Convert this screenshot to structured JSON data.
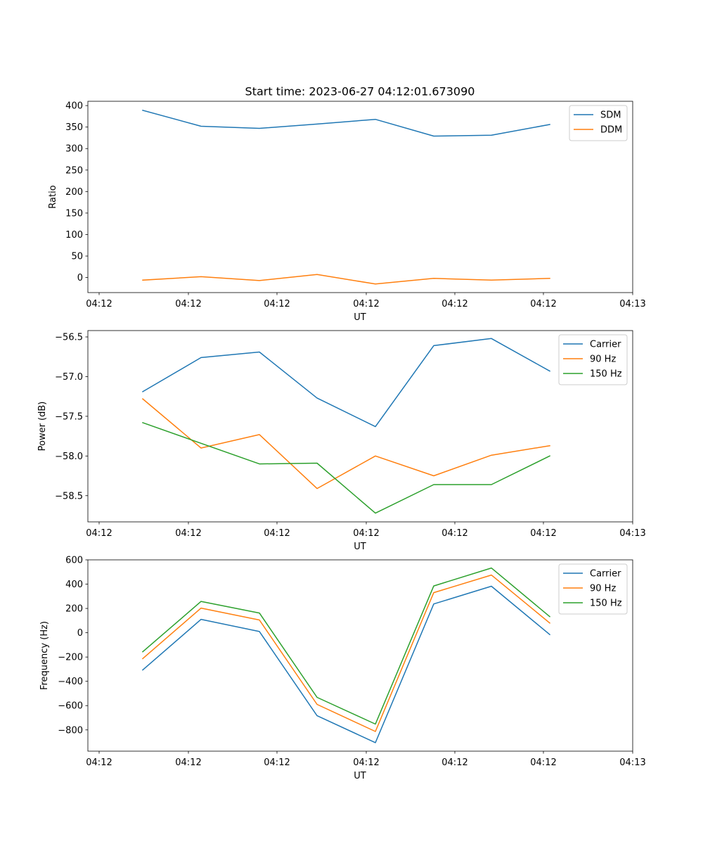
{
  "figure": {
    "title": "Start time: 2023-06-27 04:12:01.673090"
  },
  "chart_data": [
    {
      "type": "line",
      "xlabel": "UT",
      "ylabel": "Ratio",
      "x_tick_labels": [
        "04:12",
        "04:12",
        "04:12",
        "04:12",
        "04:12",
        "04:12",
        "04:13"
      ],
      "ylim": [
        -35,
        410
      ],
      "y_ticks": [
        0,
        50,
        100,
        150,
        200,
        250,
        300,
        350,
        400
      ],
      "grid": false,
      "legend_position": "upper right",
      "series": [
        {
          "name": "SDM",
          "color": "#1f77b4",
          "values": [
            389,
            352,
            347,
            357,
            368,
            329,
            331,
            356
          ]
        },
        {
          "name": "DDM",
          "color": "#ff7f0e",
          "values": [
            -6,
            2,
            -7,
            7,
            -15,
            -2,
            -6,
            -2
          ]
        }
      ]
    },
    {
      "type": "line",
      "xlabel": "UT",
      "ylabel": "Power (dB)",
      "x_tick_labels": [
        "04:12",
        "04:12",
        "04:12",
        "04:12",
        "04:12",
        "04:12",
        "04:13"
      ],
      "ylim": [
        -58.83,
        -56.42
      ],
      "y_ticks": [
        -58.5,
        -58.0,
        -57.5,
        -57.0,
        -56.5
      ],
      "y_tick_labels": [
        "−58.5",
        "−58.0",
        "−57.5",
        "−57.0",
        "−56.5"
      ],
      "grid": false,
      "legend_position": "upper right",
      "series": [
        {
          "name": "Carrier",
          "color": "#1f77b4",
          "values": [
            -57.19,
            -56.76,
            -56.69,
            -57.27,
            -57.63,
            -56.61,
            -56.52,
            -56.93
          ]
        },
        {
          "name": "90 Hz",
          "color": "#ff7f0e",
          "values": [
            -57.28,
            -57.9,
            -57.73,
            -58.41,
            -58.0,
            -58.25,
            -57.99,
            -57.87
          ]
        },
        {
          "name": "150 Hz",
          "color": "#2ca02c",
          "values": [
            -57.58,
            -57.84,
            -58.1,
            -58.09,
            -58.72,
            -58.36,
            -58.36,
            -58.0
          ]
        }
      ]
    },
    {
      "type": "line",
      "xlabel": "UT",
      "ylabel": "Frequency (Hz)",
      "x_tick_labels": [
        "04:12",
        "04:12",
        "04:12",
        "04:12",
        "04:12",
        "04:12",
        "04:13"
      ],
      "ylim": [
        -975,
        600
      ],
      "y_ticks": [
        -800,
        -600,
        -400,
        -200,
        0,
        200,
        400,
        600
      ],
      "y_tick_labels": [
        "−800",
        "−600",
        "−400",
        "−200",
        "0",
        "200",
        "400",
        "600"
      ],
      "grid": false,
      "legend_position": "upper right",
      "series": [
        {
          "name": "Carrier",
          "color": "#1f77b4",
          "values": [
            -307,
            110,
            10,
            -683,
            -905,
            237,
            383,
            -15
          ]
        },
        {
          "name": "90 Hz",
          "color": "#ff7f0e",
          "values": [
            -213,
            203,
            105,
            -590,
            -813,
            330,
            475,
            80
          ]
        },
        {
          "name": "150 Hz",
          "color": "#2ca02c",
          "values": [
            -157,
            258,
            162,
            -532,
            -752,
            385,
            533,
            133
          ]
        }
      ]
    }
  ]
}
